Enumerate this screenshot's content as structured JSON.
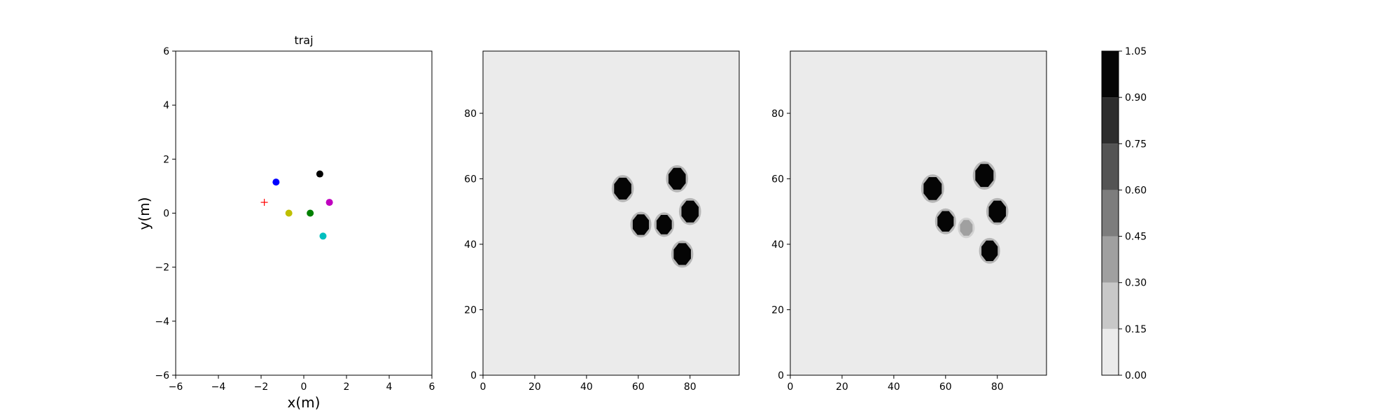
{
  "chart_data": [
    {
      "type": "scatter",
      "title": "traj",
      "xlabel": "x(m)",
      "ylabel": "y(m)",
      "xlim": [
        -6,
        6
      ],
      "ylim": [
        -6,
        6
      ],
      "xticks": [
        -6,
        -4,
        -2,
        0,
        2,
        4,
        6
      ],
      "yticks": [
        -6,
        -4,
        -2,
        0,
        2,
        4,
        6
      ],
      "xtick_labels": [
        "−6",
        "−4",
        "−2",
        "0",
        "2",
        "4",
        "6"
      ],
      "ytick_labels": [
        "−6",
        "−4",
        "−2",
        "0",
        "2",
        "4",
        "6"
      ],
      "grid": false,
      "points": [
        {
          "x": -1.3,
          "y": 1.15,
          "color": "#0000ff",
          "marker": "circle"
        },
        {
          "x": 0.75,
          "y": 1.45,
          "color": "#000000",
          "marker": "circle"
        },
        {
          "x": 1.2,
          "y": 0.4,
          "color": "#bf00bf",
          "marker": "circle"
        },
        {
          "x": -0.7,
          "y": 0.0,
          "color": "#bfbf00",
          "marker": "circle"
        },
        {
          "x": 0.3,
          "y": 0.0,
          "color": "#008000",
          "marker": "circle"
        },
        {
          "x": 0.9,
          "y": -0.85,
          "color": "#00bfbf",
          "marker": "circle"
        },
        {
          "x": -1.85,
          "y": 0.4,
          "color": "#ff0000",
          "marker": "plus"
        }
      ]
    },
    {
      "type": "heatmap",
      "xlim": [
        0,
        99
      ],
      "ylim": [
        0,
        99
      ],
      "xticks": [
        0,
        20,
        40,
        60,
        80
      ],
      "yticks": [
        0,
        20,
        40,
        60,
        80
      ],
      "xtick_labels": [
        "0",
        "20",
        "40",
        "60",
        "80"
      ],
      "ytick_labels": [
        "0",
        "20",
        "40",
        "60",
        "80"
      ],
      "background_value": 0.0,
      "blobs": [
        {
          "x": 54,
          "y": 57,
          "r": 3.6,
          "value": 1.0
        },
        {
          "x": 75,
          "y": 60,
          "r": 3.6,
          "value": 1.0
        },
        {
          "x": 80,
          "y": 50,
          "r": 3.6,
          "value": 1.0
        },
        {
          "x": 61,
          "y": 46,
          "r": 3.4,
          "value": 1.0
        },
        {
          "x": 70,
          "y": 46,
          "r": 3.2,
          "value": 1.0
        },
        {
          "x": 77,
          "y": 37,
          "r": 3.6,
          "value": 1.0
        }
      ]
    },
    {
      "type": "heatmap",
      "xlim": [
        0,
        99
      ],
      "ylim": [
        0,
        99
      ],
      "xticks": [
        0,
        20,
        40,
        60,
        80
      ],
      "yticks": [
        0,
        20,
        40,
        60,
        80
      ],
      "xtick_labels": [
        "0",
        "20",
        "40",
        "60",
        "80"
      ],
      "ytick_labels": [
        "0",
        "20",
        "40",
        "60",
        "80"
      ],
      "background_value": 0.0,
      "blobs": [
        {
          "x": 55,
          "y": 57,
          "r": 3.8,
          "value": 1.0
        },
        {
          "x": 75,
          "y": 61,
          "r": 3.8,
          "value": 1.0
        },
        {
          "x": 80,
          "y": 50,
          "r": 3.6,
          "value": 1.0
        },
        {
          "x": 60,
          "y": 47,
          "r": 3.4,
          "value": 1.0
        },
        {
          "x": 77,
          "y": 38,
          "r": 3.4,
          "value": 1.0
        },
        {
          "x": 68,
          "y": 45,
          "r": 2.6,
          "value": 0.45
        }
      ]
    },
    {
      "type": "colorbar",
      "levels": [
        0.0,
        0.15,
        0.3,
        0.45,
        0.6,
        0.75,
        0.9,
        1.05
      ],
      "tick_labels": [
        "0.00",
        "0.15",
        "0.30",
        "0.45",
        "0.60",
        "0.75",
        "0.90",
        "1.05"
      ],
      "colors": [
        "#ebebeb",
        "#c8c8c8",
        "#a0a0a0",
        "#7d7d7d",
        "#545454",
        "#2d2d2d",
        "#050505"
      ]
    }
  ]
}
